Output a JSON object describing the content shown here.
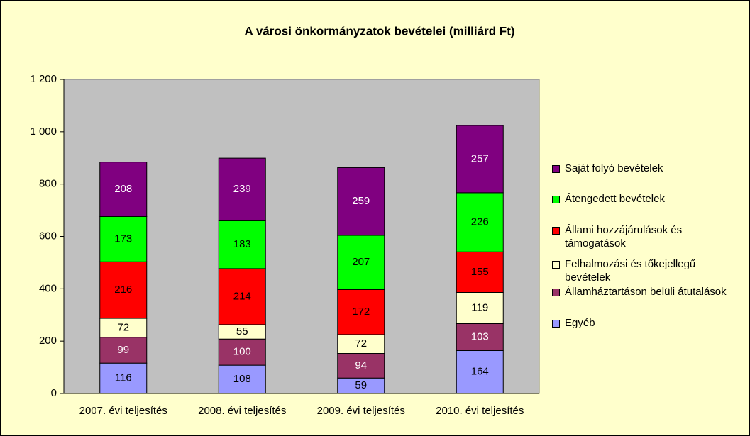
{
  "chart_data": {
    "type": "stacked_bar",
    "title": "A városi önkormányzatok bevételei (milliárd Ft)",
    "categories": [
      "2007. évi teljesítés",
      "2008. évi teljesítés",
      "2009. évi teljesítés",
      "2010. évi teljesítés"
    ],
    "series": [
      {
        "name": "Egyéb",
        "color": "#9999ff",
        "label_color": "#000000",
        "values": [
          116,
          108,
          59,
          164
        ]
      },
      {
        "name": "Államháztartáson belüli átutalások",
        "color": "#993366",
        "label_color": "#ffffff",
        "values": [
          99,
          100,
          94,
          103
        ]
      },
      {
        "name": "Felhalmozási és tőkejellegű bevételek",
        "color": "#ffffcc",
        "label_color": "#000000",
        "values": [
          72,
          55,
          72,
          119
        ]
      },
      {
        "name": "Állami hozzájárulások és támogatások",
        "color": "#ff0000",
        "label_color": "#000000",
        "values": [
          216,
          214,
          172,
          155
        ]
      },
      {
        "name": "Átengedett bevételek",
        "color": "#00ff00",
        "label_color": "#000000",
        "values": [
          173,
          183,
          207,
          226
        ]
      },
      {
        "name": "Saját folyó bevételek",
        "color": "#800080",
        "label_color": "#ffffff",
        "values": [
          208,
          239,
          259,
          257
        ]
      }
    ],
    "ylim": [
      0,
      1200
    ],
    "yticks": [
      0,
      200,
      400,
      600,
      800,
      {
        "value": 1000,
        "label": "1 000"
      },
      {
        "value": 1200,
        "label": "1 200"
      }
    ],
    "grid": false,
    "legend": "right"
  }
}
